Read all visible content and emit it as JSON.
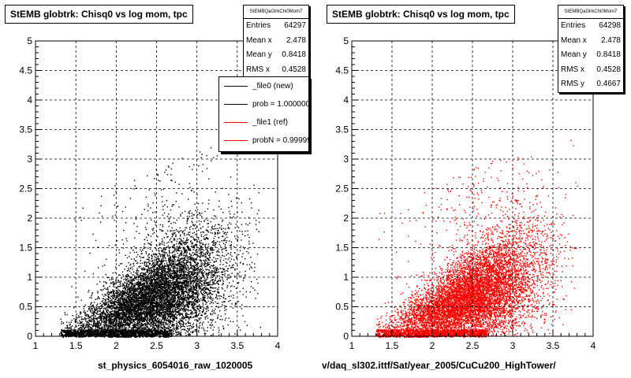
{
  "chart_data": [
    {
      "type": "scatter",
      "title": "StEMB globtrk: Chisq0 vs log mom, tpc",
      "xlabel": "st_physics_6054016_raw_1020005",
      "ylabel": "",
      "xlim": [
        1,
        4
      ],
      "ylim": [
        0,
        5
      ],
      "xticks": [
        "1",
        "1.5",
        "2",
        "2.5",
        "3",
        "3.5",
        "4"
      ],
      "yticks": [
        "0",
        "0.5",
        "1",
        "1.5",
        "2",
        "2.5",
        "3",
        "3.5",
        "4",
        "4.5",
        "5"
      ],
      "grid": true,
      "color": "#000000",
      "density": {
        "x_mean": 2.478,
        "y_mean": 0.8418,
        "x_rms": 0.4528,
        "x_min": 1.3,
        "x_max": 3.8
      },
      "stats": {
        "header": "StEMBQaGlrkChi0Mom7",
        "rows": [
          {
            "label": "Entries",
            "value": "64297"
          },
          {
            "label": "Mean x",
            "value": "2.478"
          },
          {
            "label": "Mean y",
            "value": "0.8418"
          },
          {
            "label": "RMS x",
            "value": "0.4528"
          }
        ]
      },
      "legend": {
        "position": "top-right",
        "entries": [
          {
            "label": "_file0 (new)",
            "color": "#000000"
          },
          {
            "label": "prob = 1.000000",
            "color": "#000000"
          },
          {
            "label": "_file1 (ref)",
            "color": "#ff0000"
          },
          {
            "label": "probN = 0.99999",
            "color": "#ff0000"
          }
        ]
      }
    },
    {
      "type": "scatter",
      "title": "StEMB globtrk: Chisq0 vs log mom, tpc",
      "xlabel": "v/daq_sl302.ittf/Sat/year_2005/CuCu200_HighTower/",
      "ylabel": "",
      "xlim": [
        1,
        4
      ],
      "ylim": [
        0,
        5
      ],
      "xticks": [
        "1",
        "1.5",
        "2",
        "2.5",
        "3",
        "3.5",
        "4"
      ],
      "yticks": [
        "0",
        "0.5",
        "1",
        "1.5",
        "2",
        "2.5",
        "3",
        "3.5",
        "4",
        "4.5",
        "5"
      ],
      "grid": true,
      "color": "#ff0000",
      "density": {
        "x_mean": 2.478,
        "y_mean": 0.8418,
        "x_rms": 0.4528,
        "y_rms": 0.4667,
        "x_min": 1.3,
        "x_max": 3.8
      },
      "stats": {
        "header": "StEMBQaGlrkChi0Mom7",
        "rows": [
          {
            "label": "Entries",
            "value": "64298"
          },
          {
            "label": "Mean x",
            "value": "2.478"
          },
          {
            "label": "Mean y",
            "value": "0.8418"
          },
          {
            "label": "RMS x",
            "value": "0.4528"
          },
          {
            "label": "RMS y",
            "value": "0.4667"
          }
        ]
      }
    }
  ]
}
